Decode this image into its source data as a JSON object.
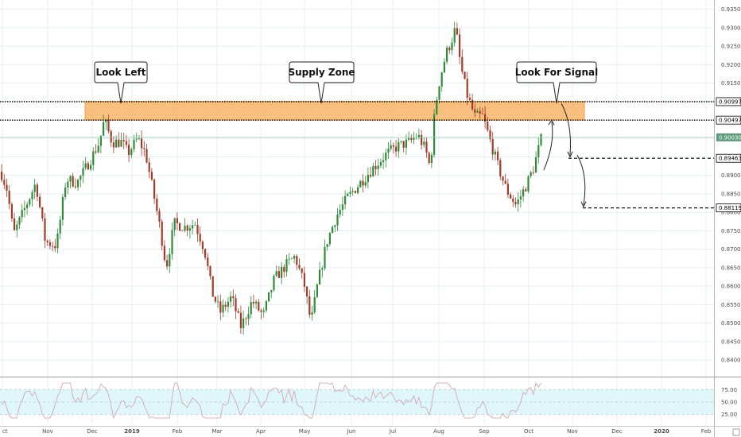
{
  "chart_data": {
    "type": "candlestick",
    "price_axis": {
      "range": [
        0.8355,
        0.9375
      ],
      "ticks": [
        "0.93500",
        "0.93000",
        "0.92500",
        "0.92000",
        "0.91500",
        "0.91000",
        "0.90500",
        "0.90000",
        "0.89500",
        "0.89000",
        "0.88500",
        "0.88000",
        "0.87500",
        "0.87000",
        "0.86500",
        "0.86000",
        "0.85500",
        "0.85000",
        "0.84500",
        "0.84000"
      ]
    },
    "date_axis": {
      "labels": [
        "ct",
        "Nov",
        "Dec",
        "2019",
        "Feb",
        "Mar",
        "Apr",
        "May",
        "Jun",
        "Jul",
        "Aug",
        "Sep",
        "Oct",
        "Nov",
        "Dec",
        "2020",
        "Feb"
      ],
      "bold_labels": [
        "2019",
        "2020"
      ]
    },
    "tagged_levels": [
      {
        "value": "0.90997",
        "price": 0.90997,
        "style": "dotted",
        "color": "#000000"
      },
      {
        "value": "0.90497",
        "price": 0.90497,
        "style": "dotted",
        "color": "#000000"
      },
      {
        "value": "0.89463",
        "price": 0.89463,
        "style": "dashed",
        "color": "#000000"
      },
      {
        "value": "0.88119",
        "price": 0.88119,
        "style": "dashed",
        "color": "#000000"
      }
    ],
    "last_price": {
      "value": "0.90030",
      "price": 0.9003,
      "color": "#5b9a7d"
    },
    "supply_zone": {
      "top": 0.91,
      "bottom": 0.905,
      "fill": "#f7b468",
      "stroke": "#f0a040"
    },
    "callouts": [
      {
        "text": "Look Left"
      },
      {
        "text": "Supply Zone"
      },
      {
        "text": "Look For Signal"
      }
    ],
    "rsi": {
      "ticks": [
        "75.00",
        "50.00",
        "25.00"
      ],
      "band": [
        25,
        75
      ],
      "fill": "#dff7fb",
      "line_color": "#d4a8b0"
    },
    "colors": {
      "up": "#2e8b3a",
      "down": "#a33a2a",
      "grid": "#e8edf2"
    }
  }
}
